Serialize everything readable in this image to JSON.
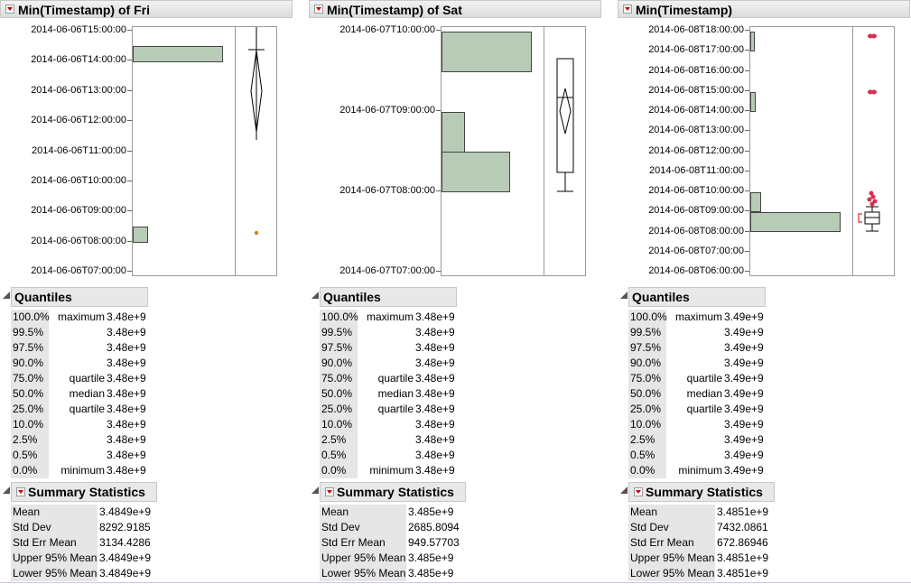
{
  "panels": [
    {
      "title": "Min(Timestamp) of Fri",
      "yticks": [
        "2014-06-06T15:00:00",
        "2014-06-06T14:00:00",
        "2014-06-06T13:00:00",
        "2014-06-06T12:00:00",
        "2014-06-06T11:00:00",
        "2014-06-06T10:00:00",
        "2014-06-06T09:00:00",
        "2014-06-06T08:00:00",
        "2014-06-06T07:00:00"
      ],
      "quantiles_title": "Quantiles",
      "quantiles": [
        {
          "pct": "100.0%",
          "label": "maximum",
          "value": "3.48e+9"
        },
        {
          "pct": "99.5%",
          "label": "",
          "value": "3.48e+9"
        },
        {
          "pct": "97.5%",
          "label": "",
          "value": "3.48e+9"
        },
        {
          "pct": "90.0%",
          "label": "",
          "value": "3.48e+9"
        },
        {
          "pct": "75.0%",
          "label": "quartile",
          "value": "3.48e+9"
        },
        {
          "pct": "50.0%",
          "label": "median",
          "value": "3.48e+9"
        },
        {
          "pct": "25.0%",
          "label": "quartile",
          "value": "3.48e+9"
        },
        {
          "pct": "10.0%",
          "label": "",
          "value": "3.48e+9"
        },
        {
          "pct": "2.5%",
          "label": "",
          "value": "3.48e+9"
        },
        {
          "pct": "0.5%",
          "label": "",
          "value": "3.48e+9"
        },
        {
          "pct": "0.0%",
          "label": "minimum",
          "value": "3.48e+9"
        }
      ],
      "summary_title": "Summary Statistics",
      "summary": [
        {
          "label": "Mean",
          "value": "3.4849e+9"
        },
        {
          "label": "Std Dev",
          "value": "8292.9185"
        },
        {
          "label": "Std Err Mean",
          "value": "3134.4286"
        },
        {
          "label": "Upper 95% Mean",
          "value": "3.4849e+9"
        },
        {
          "label": "Lower 95% Mean",
          "value": "3.4849e+9"
        }
      ]
    },
    {
      "title": "Min(Timestamp) of Sat",
      "yticks": [
        "2014-06-07T10:00:00",
        "2014-06-07T09:00:00",
        "2014-06-07T08:00:00",
        "2014-06-07T07:00:00"
      ],
      "quantiles_title": "Quantiles",
      "quantiles": [
        {
          "pct": "100.0%",
          "label": "maximum",
          "value": "3.48e+9"
        },
        {
          "pct": "99.5%",
          "label": "",
          "value": "3.48e+9"
        },
        {
          "pct": "97.5%",
          "label": "",
          "value": "3.48e+9"
        },
        {
          "pct": "90.0%",
          "label": "",
          "value": "3.48e+9"
        },
        {
          "pct": "75.0%",
          "label": "quartile",
          "value": "3.48e+9"
        },
        {
          "pct": "50.0%",
          "label": "median",
          "value": "3.48e+9"
        },
        {
          "pct": "25.0%",
          "label": "quartile",
          "value": "3.48e+9"
        },
        {
          "pct": "10.0%",
          "label": "",
          "value": "3.48e+9"
        },
        {
          "pct": "2.5%",
          "label": "",
          "value": "3.48e+9"
        },
        {
          "pct": "0.5%",
          "label": "",
          "value": "3.48e+9"
        },
        {
          "pct": "0.0%",
          "label": "minimum",
          "value": "3.48e+9"
        }
      ],
      "summary_title": "Summary Statistics",
      "summary": [
        {
          "label": "Mean",
          "value": "3.485e+9"
        },
        {
          "label": "Std Dev",
          "value": "2685.8094"
        },
        {
          "label": "Std Err Mean",
          "value": "949.57703"
        },
        {
          "label": "Upper 95% Mean",
          "value": "3.485e+9"
        },
        {
          "label": "Lower 95% Mean",
          "value": "3.485e+9"
        }
      ]
    },
    {
      "title": "Min(Timestamp)",
      "yticks": [
        "2014-06-08T18:00:00",
        "2014-06-08T17:00:00",
        "2014-06-08T16:00:00",
        "2014-06-08T15:00:00",
        "2014-06-08T14:00:00",
        "2014-06-08T13:00:00",
        "2014-06-08T12:00:00",
        "2014-06-08T11:00:00",
        "2014-06-08T10:00:00",
        "2014-06-08T09:00:00",
        "2014-06-08T08:00:00",
        "2014-06-08T07:00:00",
        "2014-06-08T06:00:00"
      ],
      "quantiles_title": "Quantiles",
      "quantiles": [
        {
          "pct": "100.0%",
          "label": "maximum",
          "value": "3.49e+9"
        },
        {
          "pct": "99.5%",
          "label": "",
          "value": "3.49e+9"
        },
        {
          "pct": "97.5%",
          "label": "",
          "value": "3.49e+9"
        },
        {
          "pct": "90.0%",
          "label": "",
          "value": "3.49e+9"
        },
        {
          "pct": "75.0%",
          "label": "quartile",
          "value": "3.49e+9"
        },
        {
          "pct": "50.0%",
          "label": "median",
          "value": "3.49e+9"
        },
        {
          "pct": "25.0%",
          "label": "quartile",
          "value": "3.49e+9"
        },
        {
          "pct": "10.0%",
          "label": "",
          "value": "3.49e+9"
        },
        {
          "pct": "2.5%",
          "label": "",
          "value": "3.49e+9"
        },
        {
          "pct": "0.5%",
          "label": "",
          "value": "3.49e+9"
        },
        {
          "pct": "0.0%",
          "label": "minimum",
          "value": "3.49e+9"
        }
      ],
      "summary_title": "Summary Statistics",
      "summary": [
        {
          "label": "Mean",
          "value": "3.4851e+9"
        },
        {
          "label": "Std Dev",
          "value": "7432.0861"
        },
        {
          "label": "Std Err Mean",
          "value": "672.86946"
        },
        {
          "label": "Upper 95% Mean",
          "value": "3.4851e+9"
        },
        {
          "label": "Lower 95% Mean",
          "value": "3.4851e+9"
        }
      ]
    }
  ],
  "colors": {
    "bar_fill": "#b8cbb6",
    "outlier_red": "#d6304f",
    "outlier_orange": "#d08020",
    "bracket_red": "#cc0000"
  }
}
